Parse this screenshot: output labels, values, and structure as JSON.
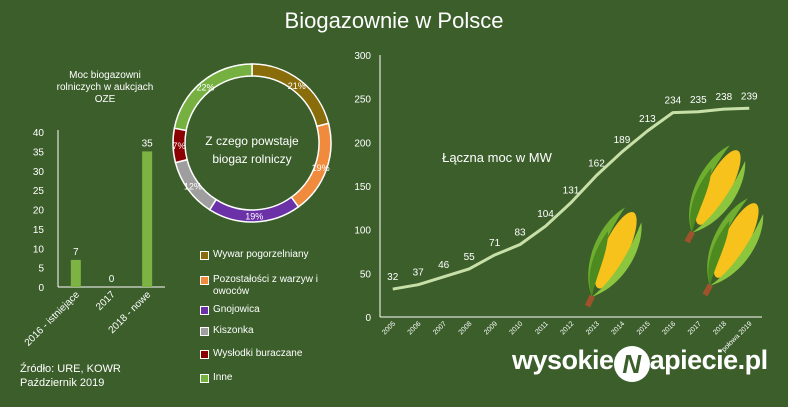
{
  "title": "Biogazownie w Polsce",
  "colors": {
    "background": "#3b5e2b",
    "line": "#c8e0a8",
    "bar": "#7cb342"
  },
  "bar_chart": {
    "title": "Moc biogazowni rolniczych w aukcjach OZE",
    "title_lines": [
      "Moc biogazowni",
      "rolniczych w aukcjach",
      "OZE"
    ]
  },
  "donut": {
    "center_lines": [
      "Z czego powstaje",
      "biogaz rolniczy"
    ]
  },
  "line_chart": {
    "annotation": "Łączna moc w MW"
  },
  "chart_data": [
    {
      "type": "bar",
      "title": "Moc biogazowni rolniczych w aukcjach OZE",
      "categories": [
        "2016 - istniejące",
        "2017",
        "2018 - nowe"
      ],
      "values": [
        7,
        0,
        35
      ],
      "ylim": [
        0,
        40
      ],
      "yticks": [
        0,
        5,
        10,
        15,
        20,
        25,
        30,
        35,
        40
      ],
      "grid": false
    },
    {
      "type": "pie",
      "title": "Z czego powstaje biogaz rolniczy",
      "slices": [
        {
          "label": "Wywar pogorzelniany",
          "value": 21,
          "display": "21%",
          "color": "#8a6d0b"
        },
        {
          "label": "Pozostałości z warzyw i owoców",
          "value": 19,
          "display": "19%",
          "color": "#f08a3c"
        },
        {
          "label": "Gnojowica",
          "value": 19,
          "display": "19%",
          "color": "#6b32a8"
        },
        {
          "label": "Kiszonka",
          "value": 12,
          "display": "12%",
          "color": "#9e9e9e"
        },
        {
          "label": "Wysłodki buraczane",
          "value": 7,
          "display": "7%",
          "color": "#8b0000"
        },
        {
          "label": "Inne",
          "value": 22,
          "display": "22%",
          "color": "#76b041"
        }
      ],
      "legend": "bottom-left"
    },
    {
      "type": "line",
      "categories": [
        "2005",
        "2006",
        "2007",
        "2008",
        "2009",
        "2010",
        "2011",
        "2012",
        "2013",
        "2014",
        "2015",
        "2016",
        "2017",
        "2018",
        "połowa 2019"
      ],
      "values": [
        32,
        37,
        46,
        55,
        71,
        83,
        104,
        131,
        162,
        189,
        213,
        234,
        235,
        238,
        239
      ],
      "ylim": [
        0,
        300
      ],
      "yticks": [
        0,
        50,
        100,
        150,
        200,
        250,
        300
      ],
      "grid": false
    }
  ],
  "source": {
    "line1": "Źródło: URE, KOWR",
    "line2": "Październik 2019"
  },
  "brand": {
    "before": "wysokie",
    "mark": "N",
    "after": "apiecie.pl"
  }
}
